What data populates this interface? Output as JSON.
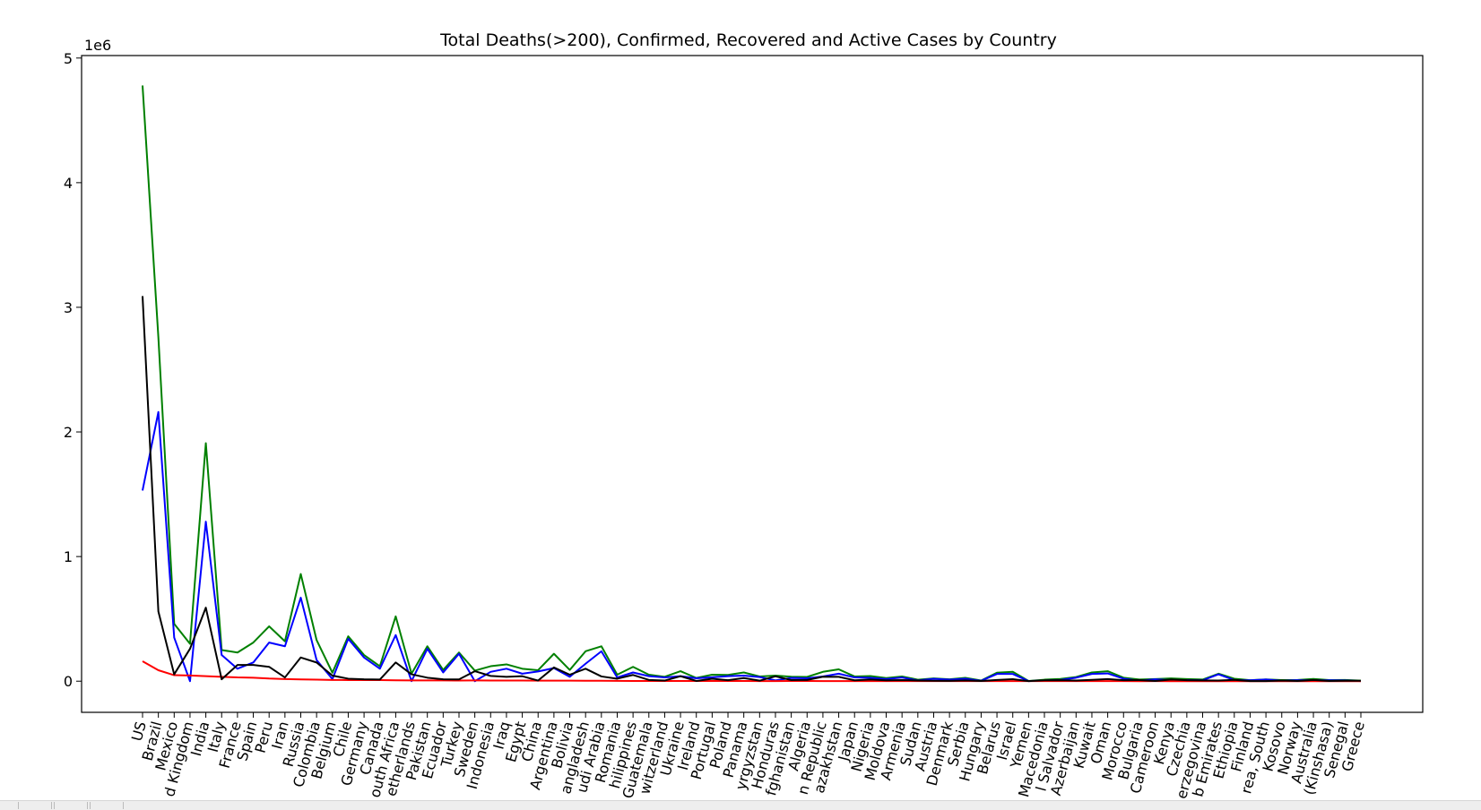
{
  "chart_data": {
    "type": "line",
    "title": "Total Deaths(>200), Confirmed, Recovered and Active Cases by Country",
    "xlabel": "",
    "ylabel": "",
    "y_offset_label": "1e6",
    "ylim": [
      -250000,
      5020000
    ],
    "yticks": [
      0,
      1000000,
      2000000,
      3000000,
      4000000,
      5000000
    ],
    "ytick_labels": [
      "0",
      "1",
      "2",
      "3",
      "4",
      "5"
    ],
    "grid": false,
    "categories": [
      "US",
      "Brazil",
      "Mexico",
      "United Kingdom",
      "India",
      "Italy",
      "France",
      "Spain",
      "Peru",
      "Iran",
      "Russia",
      "Colombia",
      "Belgium",
      "Chile",
      "Germany",
      "Canada",
      "South Africa",
      "Netherlands",
      "Pakistan",
      "Ecuador",
      "Turkey",
      "Sweden",
      "Indonesia",
      "Iraq",
      "Egypt",
      "China",
      "Argentina",
      "Bolivia",
      "Bangladesh",
      "Saudi Arabia",
      "Romania",
      "Philippines",
      "Guatemala",
      "Switzerland",
      "Ukraine",
      "Ireland",
      "Portugal",
      "Poland",
      "Panama",
      "Kyrgyzstan",
      "Honduras",
      "Afghanistan",
      "Algeria",
      "Dominican Republic",
      "Kazakhstan",
      "Japan",
      "Nigeria",
      "Moldova",
      "Armenia",
      "Sudan",
      "Austria",
      "Denmark",
      "Serbia",
      "Hungary",
      "Belarus",
      "Israel",
      "Yemen",
      "North Macedonia",
      "El Salvador",
      "Azerbaijan",
      "Kuwait",
      "Oman",
      "Morocco",
      "Bulgaria",
      "Cameroon",
      "Kenya",
      "Czechia",
      "Bosnia and Herzegovina",
      "United Arab Emirates",
      "Ethiopia",
      "Finland",
      "Korea, South",
      "Kosovo",
      "Norway",
      "Australia",
      "Congo (Kinshasa)",
      "Senegal",
      "Greece"
    ],
    "series": [
      {
        "color": "#008000",
        "values": [
          4780000,
          2760000,
          460000,
          300000,
          1910000,
          250000,
          230000,
          310000,
          440000,
          320000,
          860000,
          330000,
          68000,
          360000,
          210000,
          120000,
          520000,
          60000,
          280000,
          90000,
          230000,
          85000,
          120000,
          135000,
          100000,
          88000,
          220000,
          90000,
          240000,
          280000,
          52000,
          115000,
          52000,
          35000,
          80000,
          26000,
          52000,
          50000,
          70000,
          38000,
          45000,
          36000,
          34000,
          75000,
          95000,
          38000,
          41000,
          25000,
          38000,
          12000,
          22000,
          15000,
          27000,
          5000,
          68000,
          75000,
          1700,
          12000,
          18000,
          33000,
          70000,
          80000,
          28000,
          13000,
          17000,
          22000,
          17000,
          13000,
          60000,
          20000,
          7500,
          14000,
          9000,
          9500,
          18000,
          9000,
          10000,
          4500
        ]
      },
      {
        "color": "#0000ff",
        "values": [
          1530000,
          2160000,
          350000,
          0,
          1280000,
          210000,
          100000,
          150000,
          310000,
          280000,
          670000,
          170000,
          17000,
          340000,
          190000,
          100000,
          370000,
          0,
          260000,
          70000,
          220000,
          0,
          75000,
          100000,
          60000,
          78000,
          105000,
          35000,
          140000,
          240000,
          30000,
          70000,
          40000,
          30000,
          40000,
          23000,
          31000,
          40000,
          45000,
          33000,
          6000,
          26000,
          23000,
          38000,
          60000,
          30000,
          27000,
          17000,
          29000,
          6000,
          19000,
          12000,
          20000,
          3000,
          58000,
          58000,
          500,
          5000,
          10000,
          28000,
          58000,
          62000,
          20000,
          3500,
          15000,
          8000,
          9000,
          7000,
          55000,
          9000,
          7000,
          13000,
          4000,
          8000,
          7000,
          7000,
          6000,
          1000
        ]
      },
      {
        "color": "#ff0000",
        "values": [
          160000,
          88000,
          48000,
          46000,
          40000,
          35000,
          30000,
          28000,
          21000,
          17000,
          14000,
          12000,
          10000,
          9000,
          9000,
          8900,
          7000,
          6100,
          6000,
          5700,
          5600,
          5700,
          5000,
          5000,
          4800,
          4600,
          4000,
          4000,
          3200,
          3000,
          2200,
          2000,
          2000,
          2000,
          2000,
          1700,
          1700,
          1700,
          1400,
          1100,
          1000,
          1300,
          1200,
          1100,
          1000,
          1000,
          900,
          800,
          800,
          800,
          700,
          600,
          600,
          600,
          600,
          500,
          500,
          500,
          500,
          500,
          400,
          400,
          400,
          300,
          400,
          300,
          300,
          300,
          300,
          300,
          300,
          300,
          300,
          260,
          250,
          230,
          220,
          210
        ]
      },
      {
        "color": "#000000",
        "values": [
          3090000,
          560000,
          55000,
          260000,
          590000,
          15000,
          130000,
          130000,
          115000,
          30000,
          190000,
          150000,
          45000,
          20000,
          15000,
          13000,
          150000,
          55000,
          28000,
          15000,
          14000,
          80000,
          42000,
          35000,
          40000,
          5000,
          110000,
          52000,
          100000,
          38000,
          20000,
          50000,
          10000,
          5000,
          40000,
          2000,
          20000,
          8000,
          25000,
          4000,
          39000,
          9000,
          10000,
          36000,
          35000,
          7000,
          13000,
          7000,
          9000,
          5200,
          3000,
          2500,
          6000,
          1700,
          10000,
          16000,
          800,
          7000,
          8000,
          5000,
          11000,
          17000,
          8000,
          9000,
          1600,
          13000,
          8000,
          6000,
          5000,
          11000,
          500,
          700,
          4800,
          1200,
          10000,
          1800,
          3800,
          3400
        ]
      }
    ],
    "visible_xtick_labels": [
      "US",
      "Brazil",
      "Mexico",
      "d Kingdom",
      "India",
      "Italy",
      "France",
      "Spain",
      "Peru",
      "Iran",
      "Russia",
      "Colombia",
      "Belgium",
      "Chile",
      "Germany",
      "Canada",
      "outh Africa",
      "etherlands",
      "Pakistan",
      "Ecuador",
      "Turkey",
      "Sweden",
      "Indonesia",
      "Iraq",
      "Egypt",
      "China",
      "Argentina",
      "Bolivia",
      "angladesh",
      "udi Arabia",
      "Romania",
      "hilippines",
      "Guatemala",
      "witzerland",
      "Ukraine",
      "Ireland",
      "Portugal",
      "Poland",
      "Panama",
      "yrgyzstan",
      "Honduras",
      "fghanistan",
      "Algeria",
      "n Republic",
      "azakhstan",
      "Japan",
      "Nigeria",
      "Moldova",
      "Armenia",
      "Sudan",
      "Austria",
      "Denmark",
      "Serbia",
      "Hungary",
      "Belarus",
      "Israel",
      "Yemen",
      "Macedonia",
      "l Salvador",
      "Azerbaijan",
      "Kuwait",
      "Oman",
      "Morocco",
      "Bulgaria",
      "Cameroon",
      "Kenya",
      "Czechia",
      "erzegovina",
      "b Emirates",
      "Ethiopia",
      "Finland",
      "rea, South",
      "Kosovo",
      "Norway",
      "Australia",
      "(Kinshasa)",
      "Senegal",
      "Greece"
    ]
  }
}
